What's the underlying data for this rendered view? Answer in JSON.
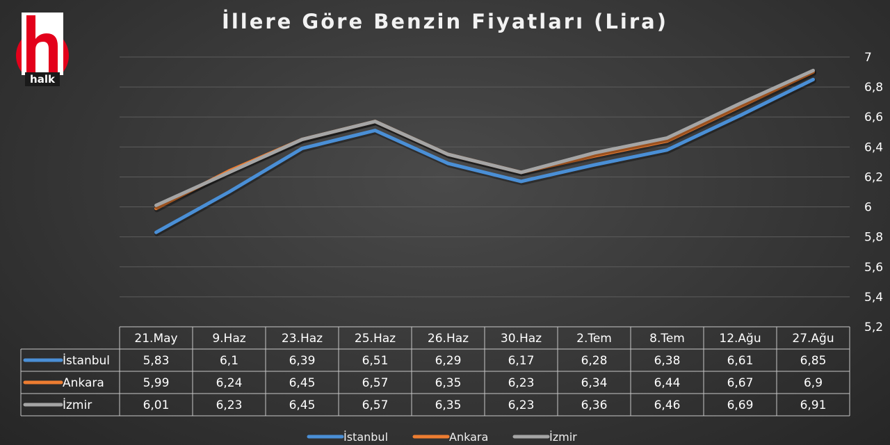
{
  "logo": {
    "text": "halk",
    "color": "#e3001b"
  },
  "chart_data": {
    "type": "line",
    "title": "İllere Göre Benzin Fiyatları  (Lira)",
    "categories": [
      "21.May",
      "9.Haz",
      "23.Haz",
      "25.Haz",
      "26.Haz",
      "30.Haz",
      "2.Tem",
      "8.Tem",
      "12.Ağu",
      "27.Ağu"
    ],
    "series": [
      {
        "name": "İstanbul",
        "color": "#4a8fd6",
        "values": [
          5.83,
          6.1,
          6.39,
          6.51,
          6.29,
          6.17,
          6.28,
          6.38,
          6.61,
          6.85
        ],
        "labels": [
          "5,83",
          "6,1",
          "6,39",
          "6,51",
          "6,29",
          "6,17",
          "6,28",
          "6,38",
          "6,61",
          "6,85"
        ]
      },
      {
        "name": "Ankara",
        "color": "#ed7d31",
        "values": [
          5.99,
          6.24,
          6.45,
          6.57,
          6.35,
          6.23,
          6.34,
          6.44,
          6.67,
          6.9
        ],
        "labels": [
          "5,99",
          "6,24",
          "6,45",
          "6,57",
          "6,35",
          "6,23",
          "6,34",
          "6,44",
          "6,67",
          "6,9"
        ]
      },
      {
        "name": "İzmir",
        "color": "#a5a5a5",
        "values": [
          6.01,
          6.23,
          6.45,
          6.57,
          6.35,
          6.23,
          6.36,
          6.46,
          6.69,
          6.91
        ],
        "labels": [
          "6,01",
          "6,23",
          "6,45",
          "6,57",
          "6,35",
          "6,23",
          "6,36",
          "6,46",
          "6,69",
          "6,91"
        ]
      }
    ],
    "ylim": [
      5.2,
      7
    ],
    "yticks": [
      5.2,
      5.4,
      5.6,
      5.8,
      6,
      6.2,
      6.4,
      6.6,
      6.8,
      7
    ],
    "ytick_labels": [
      "5,2",
      "5,4",
      "5,6",
      "5,8",
      "6",
      "6,2",
      "6,4",
      "6,6",
      "6,8",
      "7"
    ],
    "y_axis_side": "right",
    "grid": true,
    "data_table": true,
    "legend_position": "bottom"
  }
}
